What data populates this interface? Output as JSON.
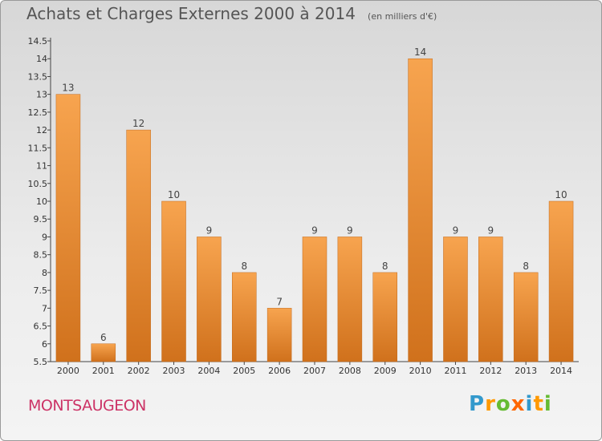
{
  "title": "Achats et Charges Externes 2000 à 2014",
  "subtitle": "(en milliers d'€)",
  "place": "MONTSAUGEON",
  "logo": {
    "text": "Proxiti",
    "letters": [
      {
        "char": "P",
        "color": "#3399cc"
      },
      {
        "char": "r",
        "color": "#ff9900"
      },
      {
        "char": "o",
        "color": "#66bb33"
      },
      {
        "char": "x",
        "color": "#ff6600"
      },
      {
        "char": "i",
        "color": "#3399cc"
      },
      {
        "char": "t",
        "color": "#ff9900"
      },
      {
        "char": "i",
        "color": "#66bb33"
      }
    ]
  },
  "colors": {
    "bar_top": "#f7a44f",
    "bar_bottom": "#d0711c",
    "title": "#555555",
    "place": "#cc3366"
  },
  "chart_data": {
    "type": "bar",
    "categories": [
      "2000",
      "2001",
      "2002",
      "2003",
      "2004",
      "2005",
      "2006",
      "2007",
      "2008",
      "2009",
      "2010",
      "2011",
      "2012",
      "2013",
      "2014"
    ],
    "values": [
      13,
      6,
      12,
      10,
      9,
      8,
      7,
      9,
      9,
      8,
      14,
      9,
      9,
      8,
      10
    ],
    "value_labels": [
      "13",
      "6",
      "12",
      "10",
      "9",
      "8",
      "7",
      "9",
      "9",
      "8",
      "14",
      "9",
      "9",
      "8",
      "10"
    ],
    "y_ticks": [
      "5.5",
      "6",
      "6.5",
      "7",
      "7.5",
      "8",
      "8.5",
      "9",
      "9.5",
      "10",
      "10.5",
      "11",
      "11.5",
      "12",
      "12.5",
      "13",
      "13.5",
      "14",
      "14.5"
    ],
    "ylim": [
      5.5,
      14.5
    ],
    "grid": false,
    "legend": "none"
  }
}
